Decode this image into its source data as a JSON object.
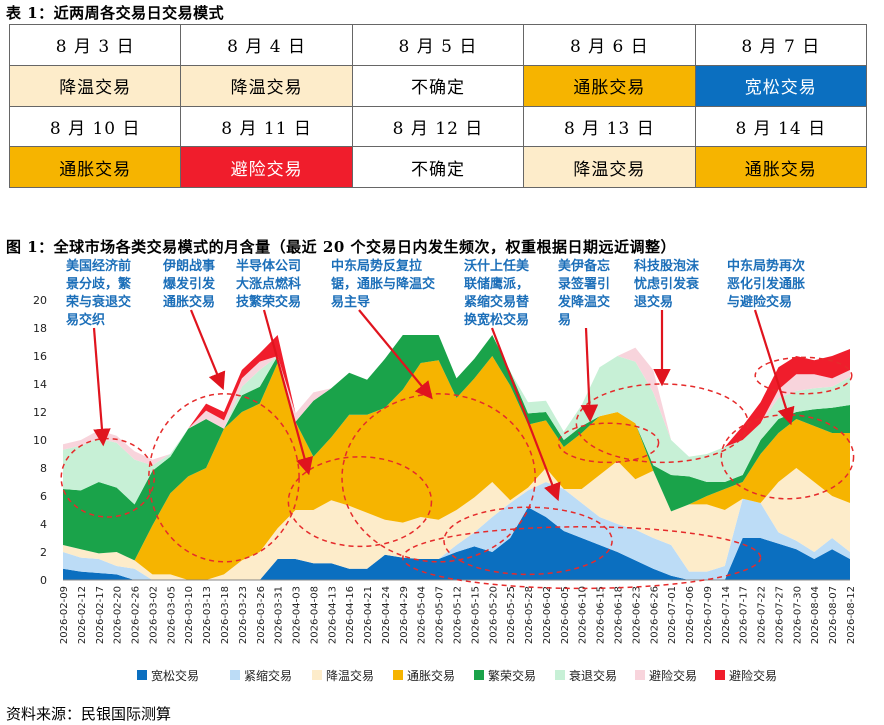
{
  "table_caption": "表 1：近两周各交易日交易模式",
  "figure_caption": "图 1：全球市场各类交易模式的月含量（最近 20 个交易日内发生频次，权重根据日期远近调整）",
  "source": "资料来源：民银国际测算",
  "colors": {
    "宽松交易": "#0b6fc0",
    "紧缩交易": "#bcdcf6",
    "降温交易": "#fdecca",
    "通胀交易": "#f6b400",
    "繁荣交易": "#1aa34a",
    "衰退交易": "#c7f0d6",
    "避险交易_light": "#f8d4dc",
    "避险交易_dark": "#f01d2c",
    "annotation": "#1c6fb9",
    "arrow": "#e0141e"
  },
  "table": {
    "rows": [
      {
        "dates": [
          "8 月 3 日",
          "8 月 4 日",
          "8 月 5 日",
          "8 月 6 日",
          "8 月 7 日"
        ],
        "modes": [
          "降温交易",
          "降温交易",
          "不确定",
          "通胀交易",
          "宽松交易"
        ]
      },
      {
        "dates": [
          "8 月 10 日",
          "8 月 11 日",
          "8 月 12 日",
          "8 月 13 日",
          "8 月 14 日"
        ],
        "modes": [
          "通胀交易",
          "避险交易",
          "不确定",
          "降温交易",
          "通胀交易"
        ]
      }
    ]
  },
  "chart_data": {
    "type": "area",
    "stacked": true,
    "ylim": [
      0,
      20
    ],
    "yticks": [
      0,
      2,
      4,
      6,
      8,
      10,
      12,
      14,
      16,
      18,
      20
    ],
    "xtick_labels": [
      "2026-02-09",
      "2026-02-12",
      "2026-02-17",
      "2026-02-20",
      "2026-02-26",
      "2026-03-02",
      "2026-03-05",
      "2026-03-10",
      "2026-03-13",
      "2026-03-18",
      "2026-03-23",
      "2026-03-26",
      "2026-03-31",
      "2026-04-03",
      "2026-04-08",
      "2026-04-13",
      "2026-04-16",
      "2026-04-21",
      "2026-04-24",
      "2026-04-29",
      "2026-05-04",
      "2026-05-07",
      "2026-05-12",
      "2026-05-15",
      "2026-05-20",
      "2026-05-25",
      "2026-05-28",
      "2026-06-02",
      "2026-06-05",
      "2026-06-10",
      "2026-06-15",
      "2026-06-18",
      "2026-06-23",
      "2026-06-26",
      "2026-07-01",
      "2026-07-06",
      "2026-07-09",
      "2026-07-14",
      "2026-07-17",
      "2026-07-22",
      "2026-07-27",
      "2026-07-30",
      "2026-08-04",
      "2026-08-07",
      "2026-08-12"
    ],
    "series": [
      {
        "name": "宽松交易",
        "values": [
          0.8,
          0.6,
          0.5,
          0.4,
          0.0,
          0.0,
          0.0,
          0.0,
          0.0,
          0.0,
          0.0,
          0.0,
          1.5,
          1.5,
          1.2,
          1.2,
          0.8,
          0.8,
          1.8,
          1.6,
          1.5,
          1.5,
          2.0,
          2.4,
          2.0,
          3.0,
          5.2,
          4.5,
          3.5,
          3.0,
          2.5,
          2.0,
          1.4,
          0.8,
          0.3,
          0.0,
          0.0,
          0.0,
          3.0,
          3.0,
          2.6,
          2.2,
          1.5,
          2.2,
          1.5
        ]
      },
      {
        "name": "紧缩交易",
        "values": [
          1.2,
          1.0,
          1.0,
          0.6,
          0.8,
          0.0,
          0.0,
          0.0,
          0.0,
          0.0,
          0.0,
          0.0,
          0.0,
          0.0,
          0.0,
          0.0,
          0.0,
          0.0,
          0.0,
          0.0,
          0.0,
          0.0,
          0.5,
          1.0,
          2.5,
          2.5,
          1.2,
          2.5,
          3.0,
          2.5,
          2.0,
          2.0,
          2.2,
          2.2,
          2.2,
          0.6,
          0.6,
          1.0,
          2.8,
          2.5,
          0.8,
          0.6,
          0.5,
          0.8,
          0.5
        ]
      },
      {
        "name": "降温交易",
        "values": [
          0.5,
          0.6,
          0.4,
          1.0,
          0.6,
          0.4,
          0.4,
          0.0,
          0.0,
          0.4,
          1.4,
          2.0,
          2.2,
          3.5,
          3.8,
          4.5,
          4.5,
          4.0,
          2.5,
          2.5,
          3.0,
          2.8,
          2.5,
          2.5,
          2.5,
          0.2,
          0.2,
          1.0,
          0.0,
          1.0,
          3.0,
          4.5,
          3.6,
          4.8,
          2.4,
          4.8,
          4.8,
          4.0,
          0.0,
          0.0,
          3.6,
          5.2,
          5.0,
          3.0,
          3.5
        ]
      },
      {
        "name": "通胀交易",
        "values": [
          0.0,
          0.0,
          0.0,
          0.0,
          0.0,
          3.5,
          5.8,
          7.4,
          8.0,
          10.4,
          10.6,
          10.6,
          11.8,
          6.3,
          3.8,
          4.5,
          6.5,
          7.0,
          8.0,
          9.5,
          11.0,
          11.4,
          8.0,
          8.5,
          9.0,
          8.2,
          4.5,
          3.4,
          3.0,
          4.0,
          4.2,
          3.5,
          4.0,
          0.0,
          0.0,
          0.0,
          0.6,
          1.5,
          1.2,
          3.5,
          3.5,
          3.5,
          4.0,
          4.5,
          5.0
        ]
      },
      {
        "name": "繁荣交易",
        "values": [
          4.0,
          4.2,
          5.1,
          4.6,
          4.0,
          3.9,
          2.6,
          3.4,
          3.5,
          0.0,
          1.2,
          1.2,
          0.5,
          0.0,
          4.0,
          3.5,
          3.0,
          2.5,
          3.5,
          3.9,
          2.0,
          1.8,
          1.4,
          1.4,
          1.5,
          1.0,
          0.8,
          0.6,
          0.5,
          0.5,
          0.0,
          0.0,
          0.0,
          0.4,
          2.6,
          2.0,
          1.0,
          0.5,
          0.5,
          1.0,
          1.0,
          0.5,
          1.2,
          1.8,
          2.0
        ]
      },
      {
        "name": "衰退交易",
        "values": [
          2.8,
          3.2,
          3.1,
          3.2,
          3.2,
          0.4,
          0.2,
          0.0,
          0.0,
          0.0,
          0.6,
          1.2,
          0.0,
          0.0,
          0.0,
          0.0,
          0.0,
          0.0,
          0.0,
          0.0,
          0.0,
          0.0,
          0.0,
          0.0,
          0.0,
          0.0,
          0.8,
          0.8,
          0.6,
          1.5,
          3.5,
          4.0,
          4.4,
          5.2,
          2.5,
          1.4,
          2.0,
          2.5,
          2.5,
          1.2,
          1.5,
          1.5,
          1.5,
          1.5,
          2.0
        ]
      },
      {
        "name": "避险交易_light",
        "values": [
          0.4,
          0.4,
          0.6,
          0.5,
          0.6,
          0.4,
          0.0,
          0.0,
          0.6,
          0.6,
          0.6,
          0.6,
          0.0,
          0.6,
          0.6,
          0.0,
          0.0,
          0.0,
          0.0,
          0.0,
          0.0,
          0.0,
          0.0,
          0.0,
          0.0,
          0.0,
          0.0,
          0.0,
          0.0,
          0.0,
          0.0,
          0.0,
          1.0,
          1.6,
          0.0,
          0.0,
          0.0,
          0.0,
          0.0,
          0.0,
          0.6,
          1.2,
          1.0,
          0.6,
          0.5
        ]
      },
      {
        "name": "避险交易_dark",
        "values": [
          0.0,
          0.0,
          0.0,
          0.0,
          0.0,
          0.0,
          0.0,
          0.0,
          0.5,
          0.6,
          0.6,
          0.6,
          1.5,
          0.0,
          0.0,
          0.0,
          0.0,
          0.0,
          0.0,
          0.0,
          0.0,
          0.0,
          0.0,
          0.0,
          0.0,
          0.0,
          0.0,
          0.0,
          0.0,
          0.0,
          0.0,
          0.0,
          0.0,
          0.0,
          0.0,
          0.0,
          0.0,
          0.0,
          1.0,
          1.5,
          1.6,
          1.3,
          1.0,
          1.6,
          1.5
        ]
      }
    ],
    "legend": [
      "宽松交易",
      "紧缩交易",
      "降温交易",
      "通胀交易",
      "繁荣交易",
      "衰退交易",
      "避险交易",
      "避险交易"
    ],
    "legend_position": "bottom",
    "annotations": [
      {
        "lines": [
          "美国经济前",
          "景分歧，繁",
          "荣与衰退交",
          "易交织"
        ],
        "target_index": 3
      },
      {
        "lines": [
          "伊朗战事",
          "爆发引发",
          "通胀交易"
        ],
        "target_index": 9
      },
      {
        "lines": [
          "半导体公司",
          "大涨点燃科",
          "技繁荣交易"
        ],
        "target_index": 14
      },
      {
        "lines": [
          "中东局势反复拉",
          "锯，通胀与降温交",
          "易主导"
        ],
        "target_index": 22
      },
      {
        "lines": [
          "沃什上任美",
          "联储鹰派，",
          "紧缩交易替",
          "换宽松交易"
        ],
        "target_index": 27
      },
      {
        "lines": [
          "美伊备忘",
          "录签署引",
          "发降温交",
          "易"
        ],
        "target_index": 30
      },
      {
        "lines": [
          "科技股泡沫",
          "忧虑引发衰",
          "退交易"
        ],
        "target_index": 35
      },
      {
        "lines": [
          "中东局势再次",
          "恶化引发通胀",
          "与避险交易"
        ],
        "target_index": 42
      }
    ]
  }
}
